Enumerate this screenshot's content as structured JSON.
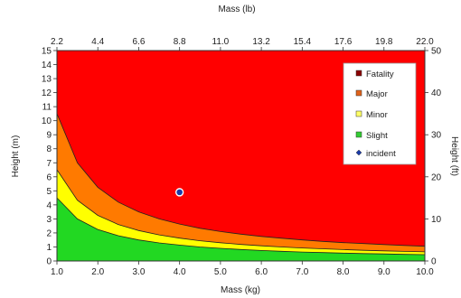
{
  "chart_data": {
    "type": "area",
    "x_axis_bottom": {
      "label": "Mass (kg)",
      "range": [
        1.0,
        10.0
      ],
      "ticks": [
        "1.0",
        "2.0",
        "3.0",
        "4.0",
        "5.0",
        "6.0",
        "7.0",
        "8.0",
        "9.0",
        "10.0"
      ]
    },
    "x_axis_top": {
      "label": "Mass (lb)",
      "range": [
        2.2,
        22.0
      ],
      "ticks": [
        "2.2",
        "4.4",
        "6.6",
        "8.8",
        "11.0",
        "13.2",
        "15.4",
        "17.6",
        "19.8",
        "22.0"
      ]
    },
    "y_axis_left": {
      "label": "Height (m)",
      "range": [
        0,
        15
      ],
      "ticks": [
        "0",
        "1",
        "2",
        "3",
        "4",
        "5",
        "6",
        "7",
        "8",
        "9",
        "10",
        "11",
        "12",
        "13",
        "14",
        "15"
      ]
    },
    "y_axis_right": {
      "label": "Height (ft)",
      "range": [
        0,
        50
      ],
      "ticks": [
        "0",
        "10",
        "20",
        "30",
        "40",
        "50"
      ]
    },
    "x": [
      1.0,
      1.5,
      2.0,
      2.5,
      3.0,
      3.5,
      4.0,
      4.5,
      5.0,
      5.5,
      6.0,
      6.5,
      7.0,
      7.5,
      8.0,
      8.5,
      9.0,
      9.5,
      10.0
    ],
    "series": [
      {
        "name": "Slight",
        "color": "#22d822",
        "values": [
          4.5,
          3.0,
          2.25,
          1.8,
          1.5,
          1.29,
          1.13,
          1.0,
          0.9,
          0.82,
          0.75,
          0.69,
          0.64,
          0.6,
          0.56,
          0.53,
          0.5,
          0.47,
          0.45
        ]
      },
      {
        "name": "Minor",
        "color": "#ffff00",
        "values": [
          6.5,
          4.33,
          3.25,
          2.6,
          2.17,
          1.86,
          1.63,
          1.44,
          1.3,
          1.18,
          1.08,
          1.0,
          0.93,
          0.87,
          0.81,
          0.76,
          0.72,
          0.68,
          0.65
        ]
      },
      {
        "name": "Major",
        "color": "#ff7a00",
        "values": [
          10.5,
          7.0,
          5.25,
          4.2,
          3.5,
          3.0,
          2.63,
          2.33,
          2.1,
          1.91,
          1.75,
          1.62,
          1.5,
          1.4,
          1.31,
          1.24,
          1.17,
          1.11,
          1.05
        ]
      },
      {
        "name": "Fatality",
        "color": "#ff0000",
        "values": [
          15,
          15,
          15,
          15,
          15,
          15,
          15,
          15,
          15,
          15,
          15,
          15,
          15,
          15,
          15,
          15,
          15,
          15,
          15
        ]
      }
    ],
    "points": [
      {
        "name": "incident",
        "x": 4.0,
        "y": 4.9,
        "color": "#1a3aa8"
      }
    ],
    "legend": {
      "placement": "top-right",
      "entries": [
        {
          "label": "Fatality",
          "color": "#8b0000",
          "marker": "square"
        },
        {
          "label": "Major",
          "color": "#e0621a",
          "marker": "square"
        },
        {
          "label": "Minor",
          "color": "#ffff66",
          "marker": "square"
        },
        {
          "label": "Slight",
          "color": "#33cc33",
          "marker": "square"
        },
        {
          "label": "incident",
          "color": "#1a3aa8",
          "marker": "diamond"
        }
      ]
    },
    "grid": false
  }
}
